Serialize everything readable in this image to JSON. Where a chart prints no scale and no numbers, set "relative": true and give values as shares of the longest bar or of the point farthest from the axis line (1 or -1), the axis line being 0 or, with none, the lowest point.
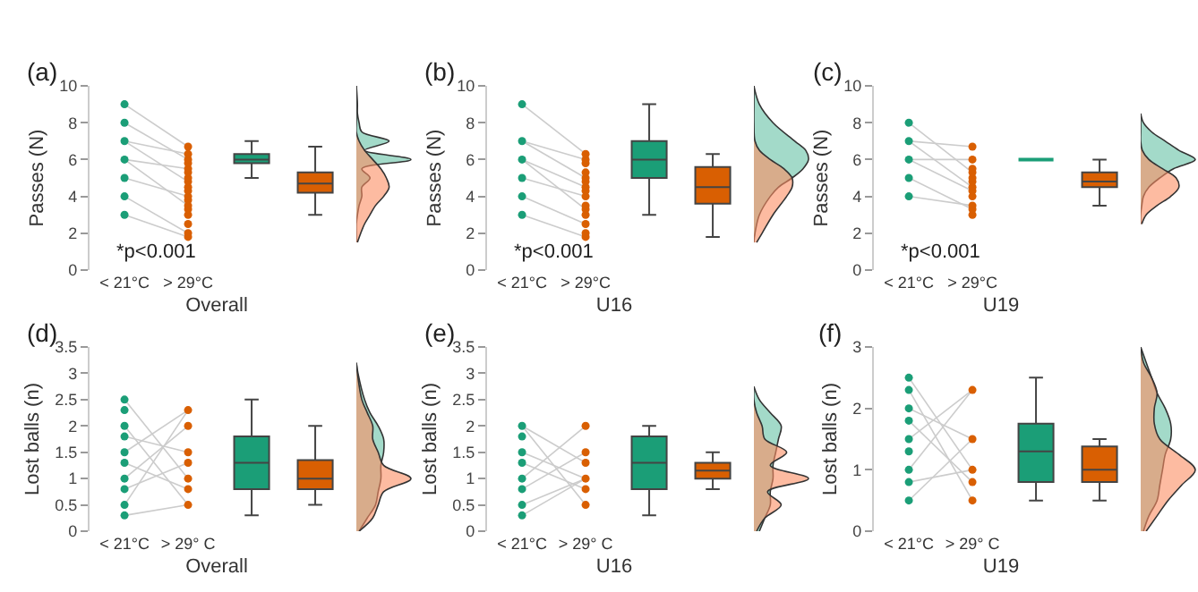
{
  "chart_data": [
    {
      "type": "box",
      "title": "(a)",
      "xlabel": "Overall",
      "ylabel": "Passes (N)",
      "categories": [
        "< 21°C",
        "> 29°C",
        null,
        null
      ],
      "ylim": [
        0,
        10
      ],
      "yticks": [
        0,
        2,
        4,
        6,
        8,
        10
      ],
      "annotations": [
        "*p<0.001"
      ],
      "grid": false,
      "boxes": [
        null,
        null,
        {
          "low": 5,
          "q1": 5.8,
          "median": 6,
          "q3": 6.3,
          "high": 7
        },
        {
          "low": 3,
          "q1": 4.2,
          "median": 4.7,
          "q3": 5.3,
          "high": 6.7
        }
      ],
      "colors": [
        null,
        null,
        "#1b9e77",
        "#d95f02"
      ],
      "series": [
        {
          "type": "line",
          "color": "#cccccc",
          "x": [
            "< 21°C",
            "> 29°C"
          ],
          "values": [
            9,
            6.7
          ]
        },
        {
          "type": "line",
          "color": "#cccccc",
          "x": [
            "< 21°C",
            "> 29°C"
          ],
          "values": [
            8,
            6
          ]
        },
        {
          "type": "line",
          "color": "#cccccc",
          "x": [
            "< 21°C",
            "> 29°C"
          ],
          "values": [
            7,
            6.3
          ]
        },
        {
          "type": "line",
          "color": "#cccccc",
          "x": [
            "< 21°C",
            "> 29°C"
          ],
          "values": [
            7,
            4.8
          ]
        },
        {
          "type": "line",
          "color": "#cccccc",
          "x": [
            "< 21°C",
            "> 29°C"
          ],
          "values": [
            6,
            5.5
          ]
        },
        {
          "type": "line",
          "color": "#cccccc",
          "x": [
            "< 21°C",
            "> 29°C"
          ],
          "values": [
            6,
            3.5
          ]
        },
        {
          "type": "line",
          "color": "#cccccc",
          "x": [
            "< 21°C",
            "> 29°C"
          ],
          "values": [
            5,
            4
          ]
        },
        {
          "type": "line",
          "color": "#cccccc",
          "x": [
            "< 21°C",
            "> 29°C"
          ],
          "values": [
            4,
            2
          ]
        },
        {
          "type": "line",
          "color": "#cccccc",
          "x": [
            "< 21°C",
            "> 29°C"
          ],
          "values": [
            3,
            1.8
          ]
        },
        {
          "type": "scatter",
          "marker": "circle",
          "color": "#1b9e77",
          "x": [
            "< 21°C",
            "< 21°C",
            "< 21°C",
            "< 21°C",
            "< 21°C",
            "< 21°C",
            "< 21°C"
          ],
          "values": [
            3,
            4,
            5,
            6,
            7,
            8,
            9
          ]
        },
        {
          "type": "scatter",
          "marker": "circle",
          "color": "#d95f02",
          "x": [
            "> 29°C",
            "> 29°C",
            "> 29°C",
            "> 29°C",
            "> 29°C",
            "> 29°C",
            "> 29°C",
            "> 29°C",
            "> 29°C",
            "> 29°C",
            "> 29°C",
            "> 29°C",
            "> 29°C",
            "> 29°C",
            "> 29°C",
            "> 29°C",
            "> 29°C",
            "> 29°C"
          ],
          "values": [
            1.8,
            2,
            2.5,
            3,
            3.3,
            3.5,
            3.8,
            4,
            4.3,
            4.5,
            4.8,
            5,
            5.3,
            5.5,
            5.8,
            6,
            6.3,
            6.7
          ]
        }
      ]
    },
    {
      "type": "area",
      "orientation": "horizontal",
      "relative": true,
      "tick_labels": false,
      "ylim": [
        0,
        10
      ],
      "x": [
        1.5,
        2,
        2.5,
        3,
        3.5,
        4,
        4.5,
        5,
        5.5,
        6,
        6.5,
        7,
        7.5,
        8,
        8.5,
        9,
        10
      ],
      "series": [
        {
          "color": "#66c2a5",
          "values": [
            0,
            0,
            0,
            0.02,
            0.05,
            0.1,
            0.1,
            0.25,
            0.1,
            1.0,
            0.15,
            0.6,
            0.1,
            0.05,
            0.02,
            0.02,
            0
          ]
        },
        {
          "color": "#fc8d62",
          "values": [
            0.02,
            0.08,
            0.15,
            0.25,
            0.35,
            0.5,
            0.6,
            0.55,
            0.45,
            0.3,
            0.15,
            0.05,
            0,
            0,
            0,
            0,
            0
          ]
        }
      ]
    },
    {
      "type": "box",
      "title": "(b)",
      "xlabel": "U16",
      "ylabel": "Passes (N)",
      "categories": [
        "< 21°C",
        "> 29°C",
        null,
        null
      ],
      "ylim": [
        0,
        10
      ],
      "yticks": [
        0,
        2,
        4,
        6,
        8,
        10
      ],
      "annotations": [
        "*p<0.001"
      ],
      "grid": false,
      "boxes": [
        null,
        null,
        {
          "low": 3,
          "q1": 5,
          "median": 6,
          "q3": 7,
          "high": 9
        },
        {
          "low": 1.8,
          "q1": 3.6,
          "median": 4.5,
          "q3": 5.6,
          "high": 6.3
        }
      ],
      "colors": [
        null,
        null,
        "#1b9e77",
        "#d95f02"
      ],
      "series": [
        {
          "type": "line",
          "color": "#cccccc",
          "x": [
            "< 21°C",
            "> 29°C"
          ],
          "values": [
            9,
            6.3
          ]
        },
        {
          "type": "line",
          "color": "#cccccc",
          "x": [
            "< 21°C",
            "> 29°C"
          ],
          "values": [
            7,
            6
          ]
        },
        {
          "type": "line",
          "color": "#cccccc",
          "x": [
            "< 21°C",
            "> 29°C"
          ],
          "values": [
            7,
            5
          ]
        },
        {
          "type": "line",
          "color": "#cccccc",
          "x": [
            "< 21°C",
            "> 29°C"
          ],
          "values": [
            6,
            4.5
          ]
        },
        {
          "type": "line",
          "color": "#cccccc",
          "x": [
            "< 21°C",
            "> 29°C"
          ],
          "values": [
            6,
            3.3
          ]
        },
        {
          "type": "line",
          "color": "#cccccc",
          "x": [
            "< 21°C",
            "> 29°C"
          ],
          "values": [
            5,
            4
          ]
        },
        {
          "type": "line",
          "color": "#cccccc",
          "x": [
            "< 21°C",
            "> 29°C"
          ],
          "values": [
            4,
            2.5
          ]
        },
        {
          "type": "line",
          "color": "#cccccc",
          "x": [
            "< 21°C",
            "> 29°C"
          ],
          "values": [
            3,
            1.8
          ]
        },
        {
          "type": "scatter",
          "marker": "circle",
          "color": "#1b9e77",
          "x": [
            "< 21°C",
            "< 21°C",
            "< 21°C",
            "< 21°C",
            "< 21°C",
            "< 21°C"
          ],
          "values": [
            3,
            4,
            5,
            6,
            7,
            9
          ]
        },
        {
          "type": "scatter",
          "marker": "circle",
          "color": "#d95f02",
          "x": [
            "> 29°C",
            "> 29°C",
            "> 29°C",
            "> 29°C",
            "> 29°C",
            "> 29°C",
            "> 29°C",
            "> 29°C",
            "> 29°C",
            "> 29°C",
            "> 29°C",
            "> 29°C",
            "> 29°C",
            "> 29°C",
            "> 29°C"
          ],
          "values": [
            1.8,
            2,
            2.5,
            3,
            3.3,
            3.5,
            4,
            4.3,
            4.5,
            4.8,
            5,
            5.3,
            5.8,
            6,
            6.3
          ]
        }
      ]
    },
    {
      "type": "area",
      "orientation": "horizontal",
      "relative": true,
      "tick_labels": false,
      "ylim": [
        0,
        10
      ],
      "x": [
        1.5,
        2,
        3,
        4,
        4.5,
        5,
        5.5,
        6,
        6.5,
        7,
        8,
        9,
        10
      ],
      "series": [
        {
          "color": "#66c2a5",
          "values": [
            0,
            0.02,
            0.1,
            0.3,
            0.45,
            0.7,
            0.9,
            1.0,
            0.95,
            0.75,
            0.35,
            0.1,
            0
          ]
        },
        {
          "color": "#fc8d62",
          "values": [
            0.05,
            0.15,
            0.35,
            0.6,
            0.7,
            0.7,
            0.55,
            0.3,
            0.1,
            0.02,
            0,
            0,
            0
          ]
        }
      ]
    },
    {
      "type": "box",
      "title": "(c)",
      "xlabel": "U19",
      "ylabel": "Passes (N)",
      "categories": [
        "< 21°C",
        "> 29°C",
        null,
        null
      ],
      "ylim": [
        0,
        10
      ],
      "yticks": [
        0,
        2,
        4,
        6,
        8,
        10
      ],
      "annotations": [
        "*p<0.001"
      ],
      "grid": false,
      "boxes": [
        null,
        null,
        {
          "low": 6,
          "q1": 6,
          "median": 6,
          "q3": 6,
          "high": 6
        },
        {
          "low": 3.5,
          "q1": 4.5,
          "median": 4.8,
          "q3": 5.3,
          "high": 6
        }
      ],
      "colors": [
        null,
        null,
        "#1b9e77",
        "#d95f02"
      ],
      "series": [
        {
          "type": "line",
          "color": "#cccccc",
          "x": [
            "< 21°C",
            "> 29°C"
          ],
          "values": [
            8,
            5.3
          ]
        },
        {
          "type": "line",
          "color": "#cccccc",
          "x": [
            "< 21°C",
            "> 29°C"
          ],
          "values": [
            7,
            6.7
          ]
        },
        {
          "type": "line",
          "color": "#cccccc",
          "x": [
            "< 21°C",
            "> 29°C"
          ],
          "values": [
            7,
            4.5
          ]
        },
        {
          "type": "line",
          "color": "#cccccc",
          "x": [
            "< 21°C",
            "> 29°C"
          ],
          "values": [
            6,
            6
          ]
        },
        {
          "type": "line",
          "color": "#cccccc",
          "x": [
            "< 21°C",
            "> 29°C"
          ],
          "values": [
            6,
            4.3
          ]
        },
        {
          "type": "line",
          "color": "#cccccc",
          "x": [
            "< 21°C",
            "> 29°C"
          ],
          "values": [
            5,
            3.3
          ]
        },
        {
          "type": "line",
          "color": "#cccccc",
          "x": [
            "< 21°C",
            "> 29°C"
          ],
          "values": [
            4,
            3.5
          ]
        },
        {
          "type": "scatter",
          "marker": "circle",
          "color": "#1b9e77",
          "x": [
            "< 21°C",
            "< 21°C",
            "< 21°C",
            "< 21°C",
            "< 21°C"
          ],
          "values": [
            4,
            5,
            6,
            7,
            8
          ]
        },
        {
          "type": "scatter",
          "marker": "circle",
          "color": "#d95f02",
          "x": [
            "> 29°C",
            "> 29°C",
            "> 29°C",
            "> 29°C",
            "> 29°C",
            "> 29°C",
            "> 29°C",
            "> 29°C",
            "> 29°C",
            "> 29°C",
            "> 29°C",
            "> 29°C"
          ],
          "values": [
            3,
            3.3,
            3.5,
            4,
            4.3,
            4.5,
            4.8,
            5,
            5.3,
            5.5,
            6,
            6.7
          ]
        }
      ]
    },
    {
      "type": "area",
      "orientation": "horizontal",
      "relative": true,
      "tick_labels": false,
      "ylim": [
        0,
        10
      ],
      "x": [
        2.5,
        3,
        3.5,
        4,
        4.5,
        5,
        5.5,
        6,
        6.5,
        7,
        7.5,
        8,
        8.5
      ],
      "series": [
        {
          "color": "#66c2a5",
          "values": [
            0,
            0,
            0.02,
            0.05,
            0.15,
            0.35,
            0.6,
            1.0,
            0.7,
            0.45,
            0.2,
            0.05,
            0
          ]
        },
        {
          "color": "#fc8d62",
          "values": [
            0.02,
            0.1,
            0.3,
            0.55,
            0.7,
            0.65,
            0.4,
            0.15,
            0.03,
            0,
            0,
            0,
            0
          ]
        }
      ]
    },
    {
      "type": "box",
      "title": "(d)",
      "xlabel": "Overall",
      "ylabel": "Lost balls (n)",
      "categories": [
        "< 21°C",
        "> 29° C",
        null,
        null
      ],
      "ylim": [
        0,
        3.5
      ],
      "yticks": [
        0,
        0.5,
        1,
        1.5,
        2,
        2.5,
        3,
        3.5
      ],
      "grid": false,
      "boxes": [
        null,
        null,
        {
          "low": 0.3,
          "q1": 0.8,
          "median": 1.3,
          "q3": 1.8,
          "high": 2.5
        },
        {
          "low": 0.5,
          "q1": 0.8,
          "median": 1,
          "q3": 1.35,
          "high": 2
        }
      ],
      "colors": [
        null,
        null,
        "#1b9e77",
        "#d95f02"
      ],
      "series": [
        {
          "type": "line",
          "color": "#cccccc",
          "x": [
            "< 21°C",
            "> 29° C"
          ],
          "values": [
            2.5,
            1
          ]
        },
        {
          "type": "line",
          "color": "#cccccc",
          "x": [
            "< 21°C",
            "> 29° C"
          ],
          "values": [
            2,
            0.5
          ]
        },
        {
          "type": "line",
          "color": "#cccccc",
          "x": [
            "< 21°C",
            "> 29° C"
          ],
          "values": [
            1.8,
            1.5
          ]
        },
        {
          "type": "line",
          "color": "#cccccc",
          "x": [
            "< 21°C",
            "> 29° C"
          ],
          "values": [
            1.5,
            2.3
          ]
        },
        {
          "type": "line",
          "color": "#cccccc",
          "x": [
            "< 21°C",
            "> 29° C"
          ],
          "values": [
            1.3,
            0.8
          ]
        },
        {
          "type": "line",
          "color": "#cccccc",
          "x": [
            "< 21°C",
            "> 29° C"
          ],
          "values": [
            1,
            2
          ]
        },
        {
          "type": "line",
          "color": "#cccccc",
          "x": [
            "< 21°C",
            "> 29° C"
          ],
          "values": [
            0.8,
            1.3
          ]
        },
        {
          "type": "line",
          "color": "#cccccc",
          "x": [
            "< 21°C",
            "> 29° C"
          ],
          "values": [
            0.5,
            2.3
          ]
        },
        {
          "type": "line",
          "color": "#cccccc",
          "x": [
            "< 21°C",
            "> 29° C"
          ],
          "values": [
            0.3,
            0.5
          ]
        },
        {
          "type": "scatter",
          "marker": "circle",
          "color": "#1b9e77",
          "x": [
            "< 21°C",
            "< 21°C",
            "< 21°C",
            "< 21°C",
            "< 21°C",
            "< 21°C",
            "< 21°C",
            "< 21°C",
            "< 21°C",
            "< 21°C"
          ],
          "values": [
            0.3,
            0.5,
            0.8,
            1,
            1.3,
            1.5,
            1.8,
            2,
            2.3,
            2.5
          ]
        },
        {
          "type": "scatter",
          "marker": "circle",
          "color": "#d95f02",
          "x": [
            "> 29° C",
            "> 29° C",
            "> 29° C",
            "> 29° C",
            "> 29° C",
            "> 29° C",
            "> 29° C"
          ],
          "values": [
            0.5,
            0.8,
            1,
            1.3,
            1.5,
            2,
            2.3
          ]
        }
      ]
    },
    {
      "type": "area",
      "orientation": "horizontal",
      "relative": true,
      "tick_labels": false,
      "ylim": [
        0,
        3.5
      ],
      "x": [
        0,
        0.25,
        0.5,
        0.75,
        1,
        1.25,
        1.5,
        1.75,
        2,
        2.25,
        2.5,
        3,
        3.2
      ],
      "series": [
        {
          "color": "#66c2a5",
          "values": [
            0.05,
            0.2,
            0.35,
            0.4,
            0.45,
            0.45,
            0.5,
            0.5,
            0.4,
            0.25,
            0.15,
            0.03,
            0
          ]
        },
        {
          "color": "#fc8d62",
          "values": [
            0.05,
            0.3,
            0.4,
            0.5,
            1.0,
            0.5,
            0.4,
            0.3,
            0.3,
            0.2,
            0.1,
            0.02,
            0
          ]
        }
      ]
    },
    {
      "type": "box",
      "title": "(e)",
      "xlabel": "U16",
      "ylabel": "Lost balls (n)",
      "categories": [
        "< 21°C",
        "> 29° C",
        null,
        null
      ],
      "ylim": [
        0,
        3.5
      ],
      "yticks": [
        0,
        0.5,
        1,
        1.5,
        2,
        2.5,
        3,
        3.5
      ],
      "grid": false,
      "boxes": [
        null,
        null,
        {
          "low": 0.3,
          "q1": 0.8,
          "median": 1.3,
          "q3": 1.8,
          "high": 2
        },
        {
          "low": 0.8,
          "q1": 1,
          "median": 1.15,
          "q3": 1.3,
          "high": 1.5
        }
      ],
      "colors": [
        null,
        null,
        "#1b9e77",
        "#d95f02"
      ],
      "series": [
        {
          "type": "line",
          "color": "#cccccc",
          "x": [
            "< 21°C",
            "> 29° C"
          ],
          "values": [
            2,
            0.5
          ]
        },
        {
          "type": "line",
          "color": "#cccccc",
          "x": [
            "< 21°C",
            "> 29° C"
          ],
          "values": [
            2,
            1.3
          ]
        },
        {
          "type": "line",
          "color": "#cccccc",
          "x": [
            "< 21°C",
            "> 29° C"
          ],
          "values": [
            1.5,
            1
          ]
        },
        {
          "type": "line",
          "color": "#cccccc",
          "x": [
            "< 21°C",
            "> 29° C"
          ],
          "values": [
            1.3,
            0.8
          ]
        },
        {
          "type": "line",
          "color": "#cccccc",
          "x": [
            "< 21°C",
            "> 29° C"
          ],
          "values": [
            1,
            2
          ]
        },
        {
          "type": "line",
          "color": "#cccccc",
          "x": [
            "< 21°C",
            "> 29° C"
          ],
          "values": [
            0.8,
            1.5
          ]
        },
        {
          "type": "line",
          "color": "#cccccc",
          "x": [
            "< 21°C",
            "> 29° C"
          ],
          "values": [
            0.5,
            1
          ]
        },
        {
          "type": "line",
          "color": "#cccccc",
          "x": [
            "< 21°C",
            "> 29° C"
          ],
          "values": [
            0.3,
            1
          ]
        },
        {
          "type": "scatter",
          "marker": "circle",
          "color": "#1b9e77",
          "x": [
            "< 21°C",
            "< 21°C",
            "< 21°C",
            "< 21°C",
            "< 21°C",
            "< 21°C",
            "< 21°C",
            "< 21°C"
          ],
          "values": [
            0.3,
            0.5,
            0.8,
            1,
            1.3,
            1.5,
            1.8,
            2
          ]
        },
        {
          "type": "scatter",
          "marker": "circle",
          "color": "#d95f02",
          "x": [
            "> 29° C",
            "> 29° C",
            "> 29° C",
            "> 29° C",
            "> 29° C",
            "> 29° C"
          ],
          "values": [
            0.5,
            0.8,
            1,
            1.3,
            1.5,
            2
          ]
        }
      ]
    },
    {
      "type": "area",
      "orientation": "horizontal",
      "relative": true,
      "tick_labels": false,
      "ylim": [
        0,
        3.5
      ],
      "x": [
        0,
        0.25,
        0.5,
        0.75,
        1,
        1.25,
        1.5,
        1.75,
        2,
        2.25,
        2.5,
        2.75
      ],
      "series": [
        {
          "color": "#66c2a5",
          "values": [
            0.1,
            0.2,
            0.3,
            0.3,
            0.35,
            0.35,
            0.4,
            0.45,
            0.5,
            0.3,
            0.1,
            0
          ]
        },
        {
          "color": "#fc8d62",
          "values": [
            0.05,
            0.2,
            0.5,
            0.25,
            1.0,
            0.3,
            0.6,
            0.2,
            0.15,
            0.05,
            0,
            0
          ]
        }
      ]
    },
    {
      "type": "box",
      "title": "(f)",
      "xlabel": "U19",
      "ylabel": "Lost balls (n)",
      "categories": [
        "< 21°C",
        "> 29° C",
        null,
        null
      ],
      "ylim": [
        0,
        3
      ],
      "yticks": [
        0,
        1,
        2,
        3
      ],
      "grid": false,
      "boxes": [
        null,
        null,
        {
          "low": 0.5,
          "q1": 0.8,
          "median": 1.3,
          "q3": 1.75,
          "high": 2.5
        },
        {
          "low": 0.5,
          "q1": 0.8,
          "median": 1,
          "q3": 1.38,
          "high": 1.5
        }
      ],
      "colors": [
        null,
        null,
        "#1b9e77",
        "#d95f02"
      ],
      "series": [
        {
          "type": "line",
          "color": "#cccccc",
          "x": [
            "< 21°C",
            "> 29° C"
          ],
          "values": [
            2.5,
            1
          ]
        },
        {
          "type": "line",
          "color": "#cccccc",
          "x": [
            "< 21°C",
            "> 29° C"
          ],
          "values": [
            2.3,
            0.5
          ]
        },
        {
          "type": "line",
          "color": "#cccccc",
          "x": [
            "< 21°C",
            "> 29° C"
          ],
          "values": [
            2,
            1.5
          ]
        },
        {
          "type": "line",
          "color": "#cccccc",
          "x": [
            "< 21°C",
            "> 29° C"
          ],
          "values": [
            1.8,
            0.8
          ]
        },
        {
          "type": "line",
          "color": "#cccccc",
          "x": [
            "< 21°C",
            "> 29° C"
          ],
          "values": [
            1.5,
            2.3
          ]
        },
        {
          "type": "line",
          "color": "#cccccc",
          "x": [
            "< 21°C",
            "> 29° C"
          ],
          "values": [
            1,
            2.3
          ]
        },
        {
          "type": "line",
          "color": "#cccccc",
          "x": [
            "< 21°C",
            "> 29° C"
          ],
          "values": [
            0.8,
            1
          ]
        },
        {
          "type": "line",
          "color": "#cccccc",
          "x": [
            "< 21°C",
            "> 29° C"
          ],
          "values": [
            0.5,
            1.5
          ]
        },
        {
          "type": "scatter",
          "marker": "circle",
          "color": "#1b9e77",
          "x": [
            "< 21°C",
            "< 21°C",
            "< 21°C",
            "< 21°C",
            "< 21°C",
            "< 21°C",
            "< 21°C",
            "< 21°C",
            "< 21°C"
          ],
          "values": [
            0.5,
            0.8,
            1,
            1.3,
            1.5,
            1.8,
            2,
            2.3,
            2.5
          ]
        },
        {
          "type": "scatter",
          "marker": "circle",
          "color": "#d95f02",
          "x": [
            "> 29° C",
            "> 29° C",
            "> 29° C",
            "> 29° C",
            "> 29° C"
          ],
          "values": [
            0.5,
            0.8,
            1,
            1.5,
            2.3
          ]
        }
      ]
    },
    {
      "type": "area",
      "orientation": "horizontal",
      "relative": true,
      "tick_labels": false,
      "ylim": [
        0,
        3
      ],
      "x": [
        0,
        0.25,
        0.5,
        0.75,
        1,
        1.25,
        1.5,
        1.75,
        2,
        2.25,
        2.5,
        2.75,
        3
      ],
      "series": [
        {
          "color": "#66c2a5",
          "values": [
            0.05,
            0.15,
            0.3,
            0.35,
            0.4,
            0.45,
            0.55,
            0.55,
            0.45,
            0.3,
            0.2,
            0.1,
            0
          ]
        },
        {
          "color": "#fc8d62",
          "values": [
            0.1,
            0.3,
            0.5,
            0.75,
            1.0,
            0.7,
            0.35,
            0.25,
            0.25,
            0.3,
            0.2,
            0.05,
            0
          ]
        }
      ]
    }
  ]
}
